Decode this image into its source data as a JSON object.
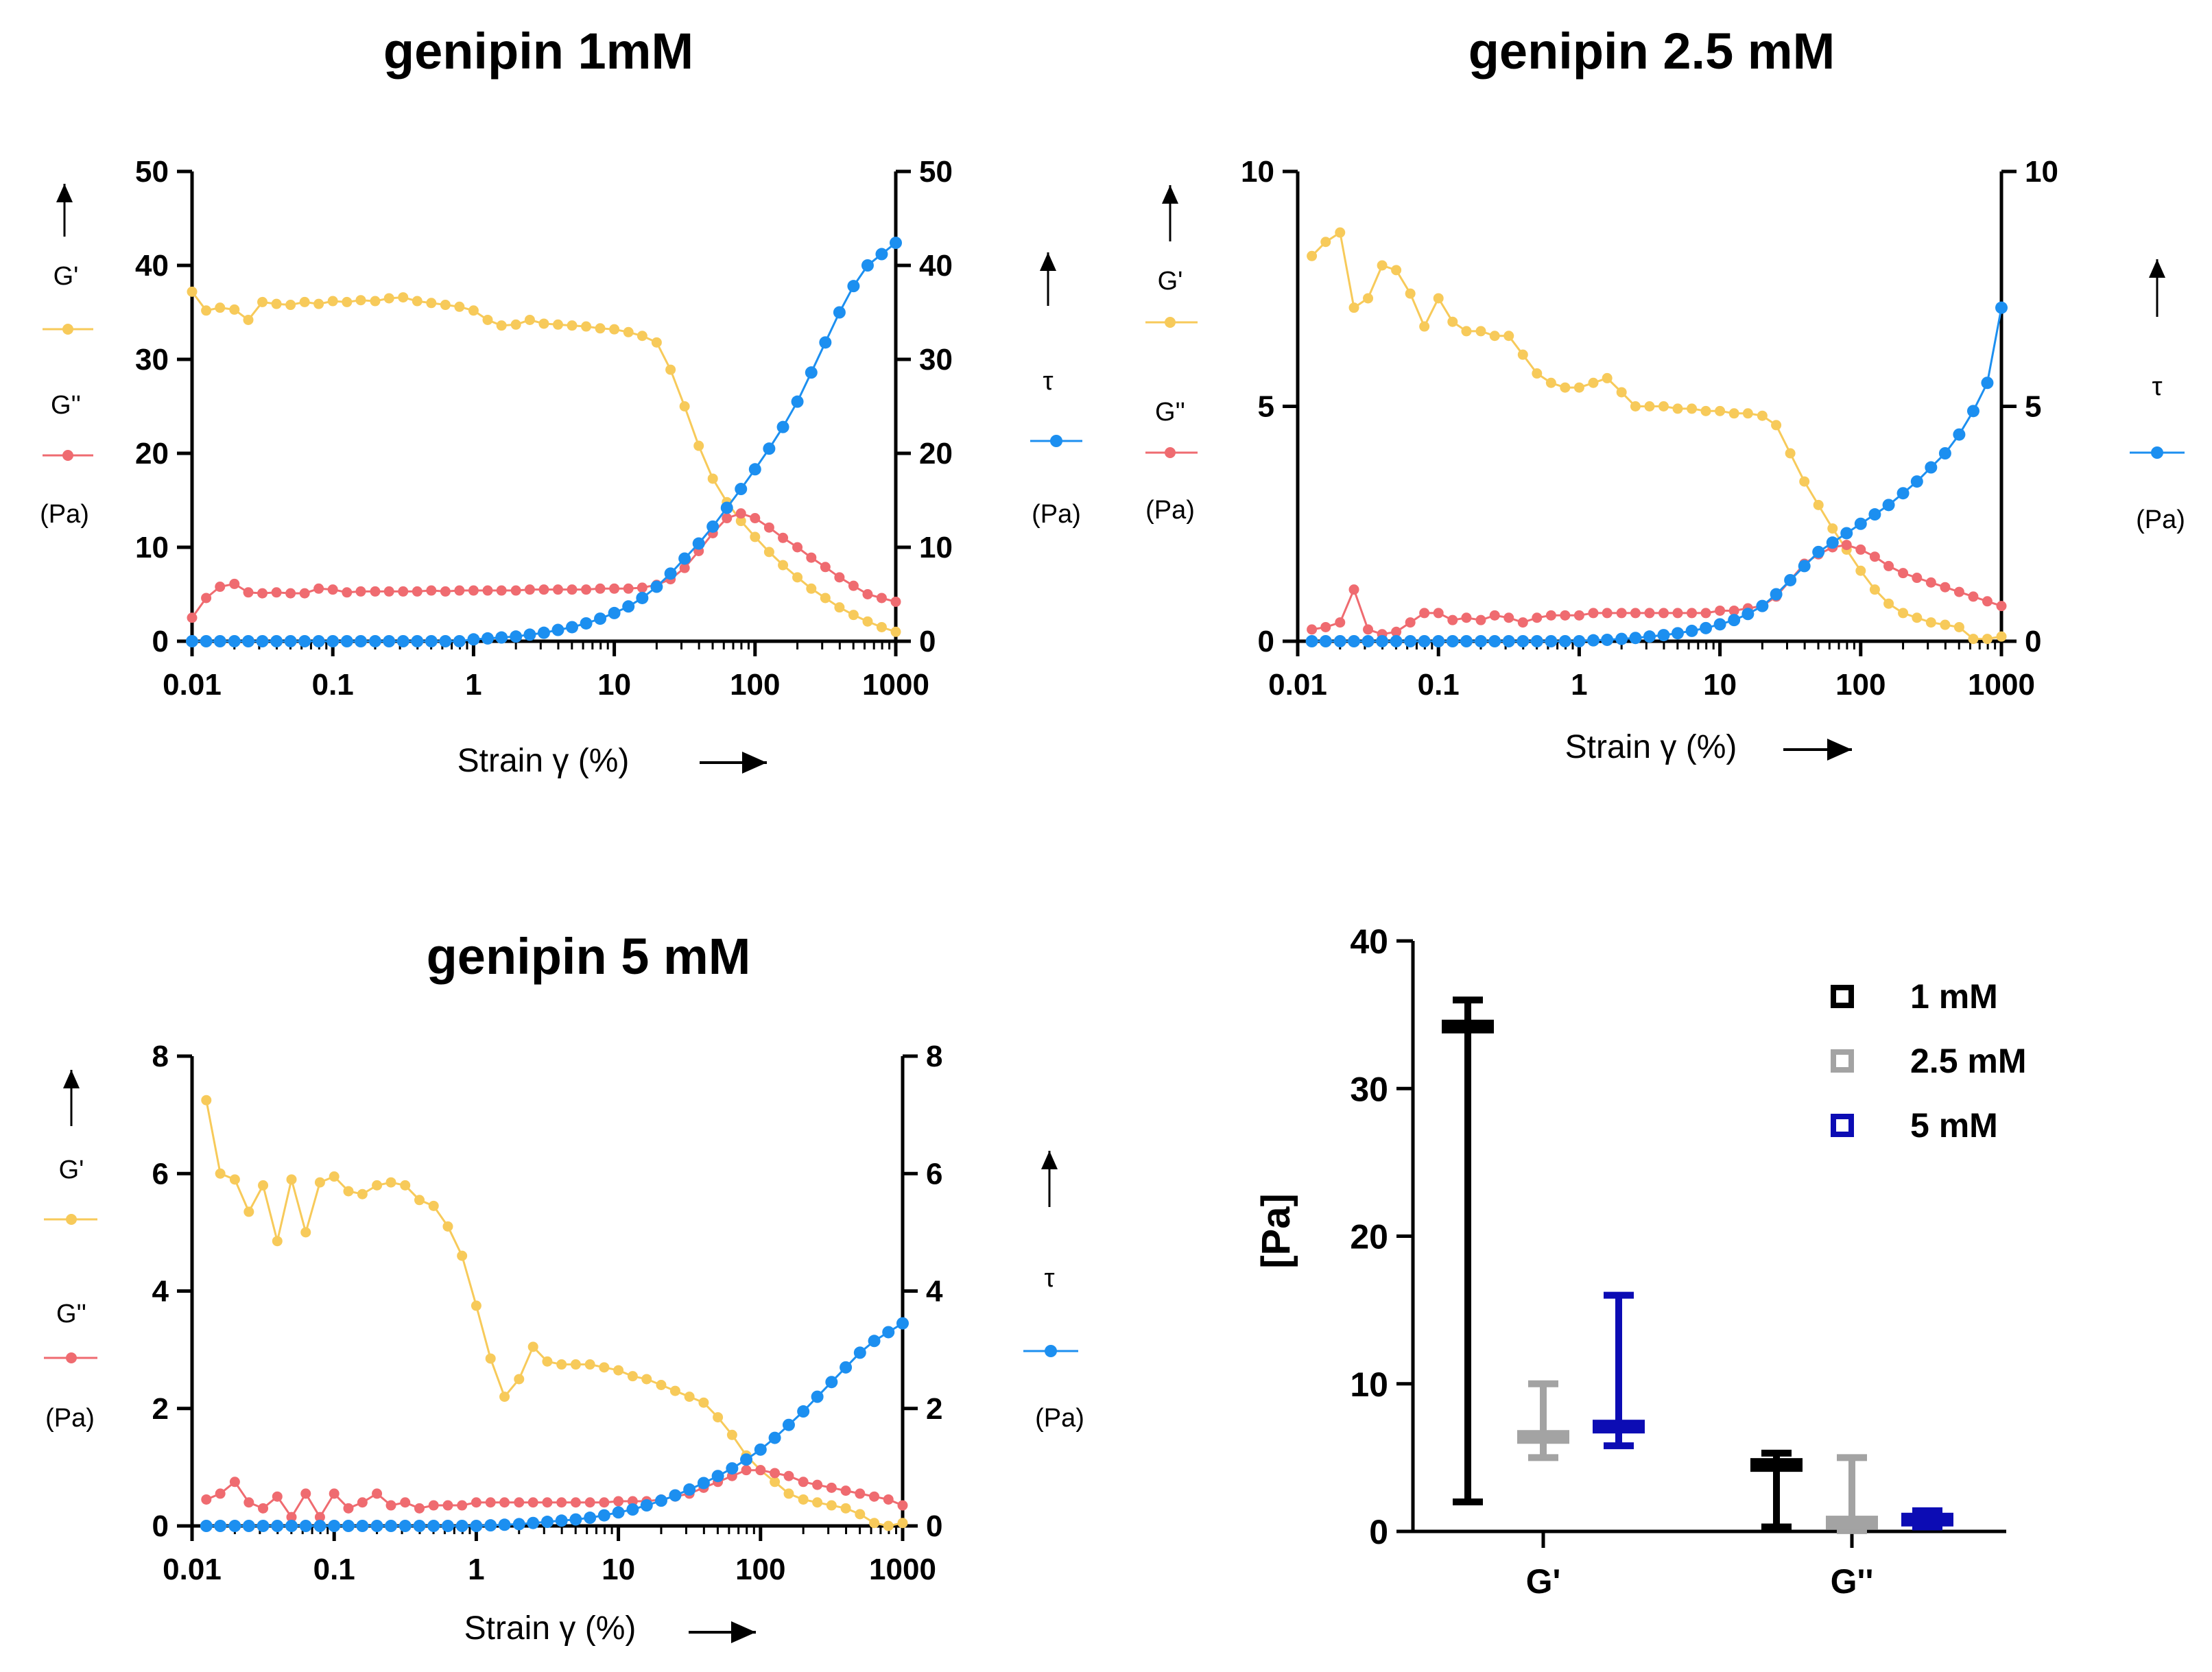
{
  "chart_data": [
    {
      "type": "line",
      "title": "genipin 1mM",
      "xlabel": "Strain γ (%)",
      "xscale": "log",
      "xlim": [
        0.01,
        1000
      ],
      "xticks": [
        "0.01",
        "0.1",
        "1",
        "10",
        "100",
        "1000"
      ],
      "ylim_left": [
        0,
        50
      ],
      "ylim_right": [
        0,
        50
      ],
      "yticks_left": [
        "0",
        "10",
        "20",
        "30",
        "40",
        "50"
      ],
      "yticks_right": [
        "0",
        "10",
        "20",
        "30",
        "40",
        "50"
      ],
      "legend_left": {
        "g1": "G'",
        "g2": "G''",
        "unit": "(Pa)"
      },
      "legend_right": {
        "tau": "τ",
        "unit": "(Pa)"
      },
      "x": [
        0.01,
        0.0126,
        0.0158,
        0.02,
        0.0251,
        0.0316,
        0.0398,
        0.0501,
        0.0631,
        0.0794,
        0.1,
        0.126,
        0.158,
        0.2,
        0.251,
        0.316,
        0.398,
        0.501,
        0.631,
        0.794,
        1,
        1.26,
        1.58,
        2,
        2.51,
        3.16,
        3.98,
        5.01,
        6.31,
        7.94,
        10,
        12.6,
        15.8,
        20,
        25.1,
        31.6,
        39.8,
        50.1,
        63.1,
        79.4,
        100,
        126,
        158,
        200,
        251,
        316,
        398,
        501,
        631,
        794,
        1000
      ],
      "series": [
        {
          "name": "G'",
          "axis": "left",
          "color": "#f7ca5a",
          "values": [
            37.2,
            35.2,
            35.5,
            35.3,
            34.2,
            36.1,
            35.9,
            35.8,
            36.1,
            35.9,
            36.2,
            36.1,
            36.3,
            36.2,
            36.5,
            36.6,
            36.2,
            36.0,
            35.8,
            35.6,
            35.2,
            34.2,
            33.6,
            33.7,
            34.2,
            33.8,
            33.7,
            33.6,
            33.5,
            33.3,
            33.2,
            32.9,
            32.5,
            31.8,
            28.9,
            25.0,
            20.8,
            17.3,
            14.8,
            12.8,
            11.1,
            9.5,
            8.1,
            6.8,
            5.6,
            4.6,
            3.6,
            2.8,
            2.1,
            1.5,
            1.0
          ]
        },
        {
          "name": "G''",
          "axis": "left",
          "color": "#ef6b70",
          "values": [
            2.5,
            4.6,
            5.8,
            6.1,
            5.2,
            5.1,
            5.2,
            5.1,
            5.1,
            5.6,
            5.5,
            5.2,
            5.3,
            5.3,
            5.3,
            5.3,
            5.3,
            5.4,
            5.3,
            5.4,
            5.4,
            5.4,
            5.4,
            5.4,
            5.5,
            5.5,
            5.5,
            5.5,
            5.5,
            5.6,
            5.6,
            5.6,
            5.7,
            6.0,
            6.6,
            7.8,
            9.6,
            11.5,
            13.1,
            13.6,
            13.1,
            12.1,
            11.0,
            10.0,
            8.9,
            7.9,
            6.8,
            5.9,
            5.0,
            4.6,
            4.2
          ]
        },
        {
          "name": "τ",
          "axis": "right",
          "color": "#1c8ff0",
          "values": [
            0,
            0,
            0,
            0,
            0,
            0,
            0,
            0,
            0,
            0,
            0,
            0,
            0,
            0,
            0,
            0,
            0,
            0,
            0,
            0,
            0.2,
            0.3,
            0.4,
            0.5,
            0.7,
            0.9,
            1.2,
            1.5,
            1.9,
            2.4,
            3.0,
            3.7,
            4.6,
            5.8,
            7.2,
            8.8,
            10.4,
            12.2,
            14.2,
            16.2,
            18.3,
            20.5,
            22.8,
            25.5,
            28.6,
            31.8,
            35.0,
            37.8,
            40.0,
            41.2,
            42.4
          ]
        }
      ]
    },
    {
      "type": "line",
      "title": "genipin 2.5 mM",
      "xlabel": "Strain γ (%)",
      "xscale": "log",
      "xlim": [
        0.01,
        1000
      ],
      "xticks": [
        "0.01",
        "0.1",
        "1",
        "10",
        "100",
        "1000"
      ],
      "ylim_left": [
        0,
        10
      ],
      "ylim_right": [
        0,
        10
      ],
      "yticks_left": [
        "0",
        "5",
        "10"
      ],
      "yticks_right": [
        "0",
        "5",
        "10"
      ],
      "legend_left": {
        "g1": "G'",
        "g2": "G''",
        "unit": "(Pa)"
      },
      "legend_right": {
        "tau": "τ",
        "unit": "(Pa)"
      },
      "x": [
        0.0126,
        0.0158,
        0.02,
        0.0251,
        0.0316,
        0.0398,
        0.0501,
        0.0631,
        0.0794,
        0.1,
        0.126,
        0.158,
        0.2,
        0.251,
        0.316,
        0.398,
        0.501,
        0.631,
        0.794,
        1,
        1.26,
        1.58,
        2,
        2.51,
        3.16,
        3.98,
        5.01,
        6.31,
        7.94,
        10,
        12.6,
        15.8,
        20,
        25.1,
        31.6,
        39.8,
        50.1,
        63.1,
        79.4,
        100,
        126,
        158,
        200,
        251,
        316,
        398,
        501,
        631,
        794,
        1000
      ],
      "series": [
        {
          "name": "G'",
          "axis": "left",
          "color": "#f7ca5a",
          "values": [
            8.2,
            8.5,
            8.7,
            7.1,
            7.3,
            8.0,
            7.9,
            7.4,
            6.7,
            7.3,
            6.8,
            6.6,
            6.6,
            6.5,
            6.5,
            6.1,
            5.7,
            5.5,
            5.4,
            5.4,
            5.5,
            5.6,
            5.3,
            5.0,
            5.0,
            5.0,
            4.95,
            4.95,
            4.9,
            4.9,
            4.85,
            4.85,
            4.8,
            4.6,
            4.0,
            3.4,
            2.9,
            2.4,
            1.95,
            1.5,
            1.1,
            0.8,
            0.6,
            0.5,
            0.4,
            0.35,
            0.3,
            0.05,
            0.05,
            0.1
          ]
        },
        {
          "name": "G''",
          "axis": "left",
          "color": "#ef6b70",
          "values": [
            0.25,
            0.3,
            0.4,
            1.1,
            0.25,
            0.15,
            0.2,
            0.4,
            0.6,
            0.6,
            0.45,
            0.5,
            0.45,
            0.55,
            0.5,
            0.4,
            0.5,
            0.55,
            0.55,
            0.55,
            0.6,
            0.6,
            0.6,
            0.6,
            0.6,
            0.6,
            0.6,
            0.6,
            0.6,
            0.65,
            0.65,
            0.7,
            0.75,
            0.95,
            1.3,
            1.65,
            1.85,
            2.0,
            2.05,
            1.95,
            1.8,
            1.6,
            1.45,
            1.35,
            1.25,
            1.15,
            1.05,
            0.95,
            0.85,
            0.75
          ]
        },
        {
          "name": "τ",
          "axis": "right",
          "color": "#1c8ff0",
          "values": [
            0,
            0,
            0,
            0,
            0,
            0,
            0,
            0,
            0,
            0,
            0,
            0,
            0,
            0,
            0,
            0,
            0,
            0,
            0,
            0,
            0.02,
            0.03,
            0.05,
            0.07,
            0.1,
            0.13,
            0.17,
            0.22,
            0.28,
            0.36,
            0.45,
            0.58,
            0.75,
            1.0,
            1.3,
            1.6,
            1.9,
            2.1,
            2.3,
            2.5,
            2.7,
            2.9,
            3.15,
            3.4,
            3.7,
            4.0,
            4.4,
            4.9,
            5.5,
            7.1
          ]
        }
      ]
    },
    {
      "type": "line",
      "title": "genipin 5 mM",
      "xlabel": "Strain γ (%)",
      "xscale": "log",
      "xlim": [
        0.01,
        1000
      ],
      "xticks": [
        "0.01",
        "0.1",
        "1",
        "10",
        "100",
        "1000"
      ],
      "ylim_left": [
        0,
        8
      ],
      "ylim_right": [
        0,
        8
      ],
      "yticks_left": [
        "0",
        "2",
        "4",
        "6",
        "8"
      ],
      "yticks_right": [
        "0",
        "2",
        "4",
        "6",
        "8"
      ],
      "legend_left": {
        "g1": "G'",
        "g2": "G''",
        "unit": "(Pa)"
      },
      "legend_right": {
        "tau": "τ",
        "unit": "(Pa)"
      },
      "x": [
        0.0126,
        0.0158,
        0.02,
        0.0251,
        0.0316,
        0.0398,
        0.0501,
        0.0631,
        0.0794,
        0.1,
        0.126,
        0.158,
        0.2,
        0.251,
        0.316,
        0.398,
        0.501,
        0.631,
        0.794,
        1,
        1.26,
        1.58,
        2,
        2.51,
        3.16,
        3.98,
        5.01,
        6.31,
        7.94,
        10,
        12.6,
        15.8,
        20,
        25.1,
        31.6,
        39.8,
        50.1,
        63.1,
        79.4,
        100,
        126,
        158,
        200,
        251,
        316,
        398,
        501,
        631,
        794,
        1000
      ],
      "series": [
        {
          "name": "G'",
          "axis": "left",
          "color": "#f7ca5a",
          "values": [
            7.25,
            6.0,
            5.9,
            5.35,
            5.8,
            4.85,
            5.9,
            5.0,
            5.85,
            5.95,
            5.7,
            5.65,
            5.8,
            5.85,
            5.8,
            5.55,
            5.45,
            5.1,
            4.6,
            3.75,
            2.85,
            2.2,
            2.5,
            3.05,
            2.8,
            2.75,
            2.75,
            2.75,
            2.7,
            2.65,
            2.55,
            2.5,
            2.4,
            2.3,
            2.2,
            2.1,
            1.85,
            1.55,
            1.2,
            0.95,
            0.75,
            0.55,
            0.45,
            0.4,
            0.35,
            0.3,
            0.2,
            0.05,
            0.0,
            0.05
          ]
        },
        {
          "name": "G''",
          "axis": "left",
          "color": "#ef6b70",
          "values": [
            0.45,
            0.55,
            0.75,
            0.4,
            0.3,
            0.5,
            0.15,
            0.55,
            0.15,
            0.55,
            0.3,
            0.4,
            0.55,
            0.35,
            0.4,
            0.3,
            0.35,
            0.35,
            0.35,
            0.4,
            0.4,
            0.4,
            0.4,
            0.4,
            0.4,
            0.4,
            0.4,
            0.4,
            0.4,
            0.42,
            0.42,
            0.42,
            0.45,
            0.5,
            0.55,
            0.65,
            0.75,
            0.85,
            0.95,
            0.95,
            0.9,
            0.85,
            0.75,
            0.7,
            0.65,
            0.6,
            0.55,
            0.5,
            0.45,
            0.35
          ]
        },
        {
          "name": "τ",
          "axis": "right",
          "color": "#1c8ff0",
          "values": [
            0,
            0,
            0,
            0,
            0,
            0,
            0,
            0,
            0,
            0,
            0,
            0,
            0,
            0,
            0,
            0,
            0,
            0,
            0,
            0,
            0.01,
            0.02,
            0.03,
            0.05,
            0.07,
            0.09,
            0.11,
            0.14,
            0.18,
            0.23,
            0.28,
            0.35,
            0.43,
            0.52,
            0.62,
            0.73,
            0.85,
            0.98,
            1.13,
            1.3,
            1.5,
            1.72,
            1.95,
            2.2,
            2.45,
            2.7,
            2.95,
            3.15,
            3.3,
            3.45
          ]
        }
      ]
    },
    {
      "type": "floating_bar",
      "title": "",
      "ylabel": "[Pa]",
      "ylim": [
        0,
        40
      ],
      "yticks": [
        "0",
        "10",
        "20",
        "30",
        "40"
      ],
      "categories": [
        "G'",
        "G''"
      ],
      "legend": [
        "1 mM",
        "2.5 mM",
        "5 mM"
      ],
      "series": [
        {
          "name": "1 mM",
          "color": "#000000",
          "min": [
            2,
            0.3
          ],
          "max": [
            36,
            5.3
          ],
          "mean": [
            34.2,
            4.5
          ]
        },
        {
          "name": "2.5 mM",
          "color": "#a3a3a3",
          "min": [
            5,
            0.05
          ],
          "max": [
            10,
            5
          ],
          "mean": [
            6.4,
            0.6
          ]
        },
        {
          "name": "5 mM",
          "color": "#0c0cb4",
          "min": [
            5.8,
            0.3
          ],
          "max": [
            16,
            1.4
          ],
          "mean": [
            7.1,
            0.8
          ]
        }
      ]
    }
  ]
}
